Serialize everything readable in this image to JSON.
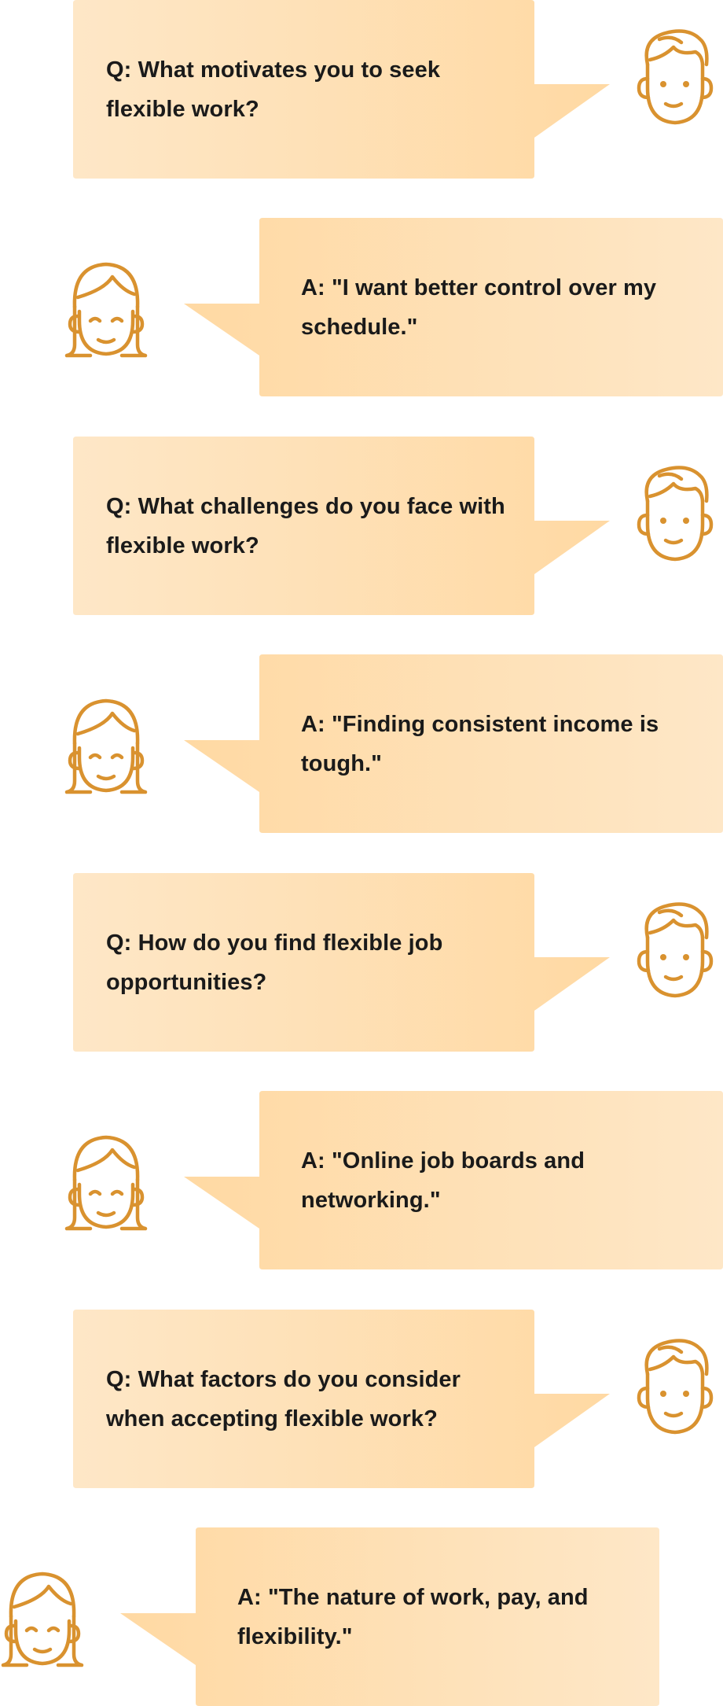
{
  "colors": {
    "bubble_dark": "#ffd9a3",
    "bubble_light": "#fee7c7",
    "avatar_stroke": "#d9922f"
  },
  "conversation": [
    {
      "speaker": "interviewer",
      "text": "Q: What motivates you to seek flexible work?"
    },
    {
      "speaker": "respondent",
      "text": "A: \"I want better control over my schedule.\""
    },
    {
      "speaker": "interviewer",
      "text": "Q: What challenges do you face with flexible work?"
    },
    {
      "speaker": "respondent",
      "text": "A: \"Finding consistent income is tough.\""
    },
    {
      "speaker": "interviewer",
      "text": "Q: How do you find flexible job opportunities?"
    },
    {
      "speaker": "respondent",
      "text": "A: \"Online job boards and networking.\""
    },
    {
      "speaker": "interviewer",
      "text": "Q: What factors do you consider when accepting flexible work?"
    },
    {
      "speaker": "respondent",
      "text": "A: \"The nature of work, pay, and flexibility.\""
    }
  ],
  "icons": {
    "interviewer": "male-face-icon",
    "respondent": "female-face-icon"
  }
}
